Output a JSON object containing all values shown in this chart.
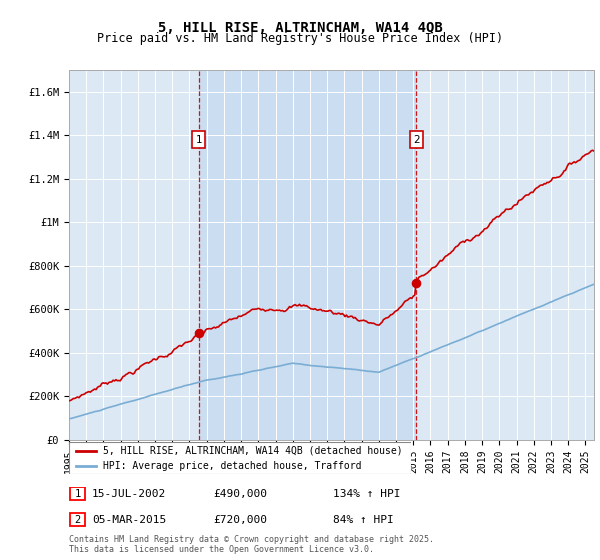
{
  "title": "5, HILL RISE, ALTRINCHAM, WA14 4QB",
  "subtitle": "Price paid vs. HM Land Registry's House Price Index (HPI)",
  "plot_bg_color": "#dce9f5",
  "shade_color": "#c5d9ef",
  "sale1_date": 2002.54,
  "sale1_price": 490000,
  "sale1_label": "1",
  "sale2_date": 2015.17,
  "sale2_price": 720000,
  "sale2_label": "2",
  "red_color": "#cc0000",
  "blue_color": "#7aadd4",
  "ylim_min": 0,
  "ylim_max": 1700000,
  "xlim_min": 1995,
  "xlim_max": 2025.5,
  "yticks": [
    0,
    200000,
    400000,
    600000,
    800000,
    1000000,
    1200000,
    1400000,
    1600000
  ],
  "ytick_labels": [
    "£0",
    "£200K",
    "£400K",
    "£600K",
    "£800K",
    "£1M",
    "£1.2M",
    "£1.4M",
    "£1.6M"
  ],
  "legend_line1": "5, HILL RISE, ALTRINCHAM, WA14 4QB (detached house)",
  "legend_line2": "HPI: Average price, detached house, Trafford",
  "note1_date": "15-JUL-2002",
  "note1_price": "£490,000",
  "note1_hpi": "134% ↑ HPI",
  "note2_date": "05-MAR-2015",
  "note2_price": "£720,000",
  "note2_hpi": "84% ↑ HPI",
  "footer": "Contains HM Land Registry data © Crown copyright and database right 2025.\nThis data is licensed under the Open Government Licence v3.0."
}
